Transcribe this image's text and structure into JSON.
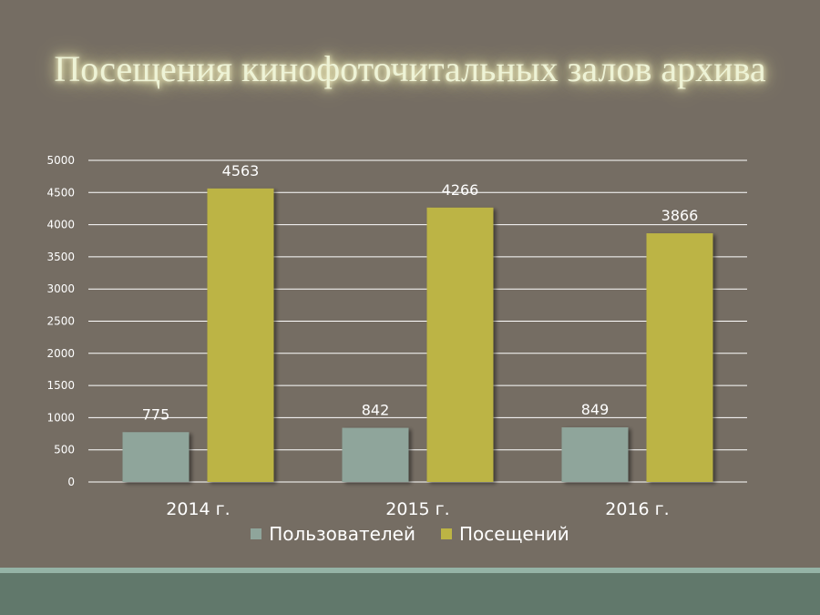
{
  "slide": {
    "title": "Посещения кинофоточитальных залов архива"
  },
  "colors": {
    "background": "#756d63",
    "users": "#8fa59b",
    "visits": "#bcb444",
    "gridline": "#ffffff",
    "band_light": "#95b3a6",
    "band_dark": "#61786b"
  },
  "chart_data": {
    "type": "bar",
    "categories": [
      "2014 г.",
      "2015 г.",
      "2016 г."
    ],
    "series": [
      {
        "name": "Пользователей",
        "values": [
          775,
          842,
          849
        ]
      },
      {
        "name": "Посещений",
        "values": [
          4563,
          4266,
          3866
        ]
      }
    ],
    "ylim": [
      0,
      5000
    ],
    "yticks": [
      0,
      500,
      1000,
      1500,
      2000,
      2500,
      3000,
      3500,
      4000,
      4500,
      5000
    ],
    "grid": true,
    "legend_position": "bottom",
    "data_labels": true
  }
}
